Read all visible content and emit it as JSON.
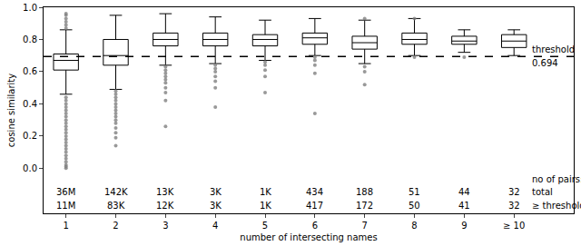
{
  "chart_data": {
    "type": "box",
    "xlabel": "number of intersecting names",
    "ylabel": "cosine similarity",
    "categories": [
      "1",
      "2",
      "3",
      "4",
      "5",
      "6",
      "7",
      "8",
      "9",
      "≥ 10"
    ],
    "q1": [
      0.61,
      0.64,
      0.76,
      0.76,
      0.76,
      0.77,
      0.74,
      0.77,
      0.77,
      0.75
    ],
    "median": [
      0.67,
      0.7,
      0.8,
      0.8,
      0.8,
      0.81,
      0.78,
      0.8,
      0.79,
      0.79
    ],
    "q3": [
      0.71,
      0.8,
      0.84,
      0.84,
      0.83,
      0.84,
      0.82,
      0.84,
      0.82,
      0.83
    ],
    "lower_whisker": [
      0.46,
      0.49,
      0.64,
      0.65,
      0.67,
      0.7,
      0.65,
      0.7,
      0.72,
      0.7
    ],
    "upper_whisker": [
      0.86,
      0.95,
      0.96,
      0.94,
      0.92,
      0.93,
      0.92,
      0.93,
      0.86,
      0.86
    ],
    "outliers": [
      [
        0.0,
        0.01,
        0.02,
        0.04,
        0.06,
        0.08,
        0.1,
        0.12,
        0.14,
        0.16,
        0.18,
        0.2,
        0.22,
        0.24,
        0.26,
        0.28,
        0.3,
        0.32,
        0.34,
        0.36,
        0.38,
        0.4,
        0.42,
        0.44,
        0.87,
        0.89,
        0.91,
        0.93,
        0.95,
        0.96
      ],
      [
        0.14,
        0.19,
        0.22,
        0.25,
        0.28,
        0.3,
        0.32,
        0.34,
        0.36,
        0.38,
        0.4,
        0.42,
        0.44,
        0.46,
        0.48
      ],
      [
        0.26,
        0.42,
        0.47,
        0.5,
        0.53,
        0.55,
        0.57,
        0.59,
        0.61,
        0.63
      ],
      [
        0.38,
        0.5,
        0.54,
        0.57,
        0.6,
        0.62,
        0.64
      ],
      [
        0.47,
        0.57,
        0.61,
        0.64,
        0.66
      ],
      [
        0.34,
        0.59,
        0.64,
        0.67,
        0.69
      ],
      [
        0.52,
        0.6,
        0.63,
        0.93
      ],
      [
        0.69,
        0.93
      ],
      [
        0.69
      ],
      []
    ],
    "color": "#000000",
    "threshold": 0.694,
    "threshold_label": "threshold",
    "line_style": "dashed",
    "count_header": "no of pairs:",
    "count_rows": [
      {
        "label": "total",
        "values": [
          "36M",
          "142K",
          "13K",
          "3K",
          "1K",
          "434",
          "188",
          "51",
          "44",
          "32"
        ]
      },
      {
        "label": "≥ threshold",
        "values": [
          "11M",
          "83K",
          "12K",
          "3K",
          "1K",
          "417",
          "172",
          "50",
          "41",
          "32"
        ]
      }
    ],
    "ylim": [
      -0.28,
      1.0
    ],
    "yticks": [
      {
        "value": 0.0,
        "label": "0.0"
      },
      0.2,
      0.4,
      0.6,
      0.8,
      {
        "value": 1.0,
        "label": "1.0"
      }
    ],
    "grid": false
  }
}
